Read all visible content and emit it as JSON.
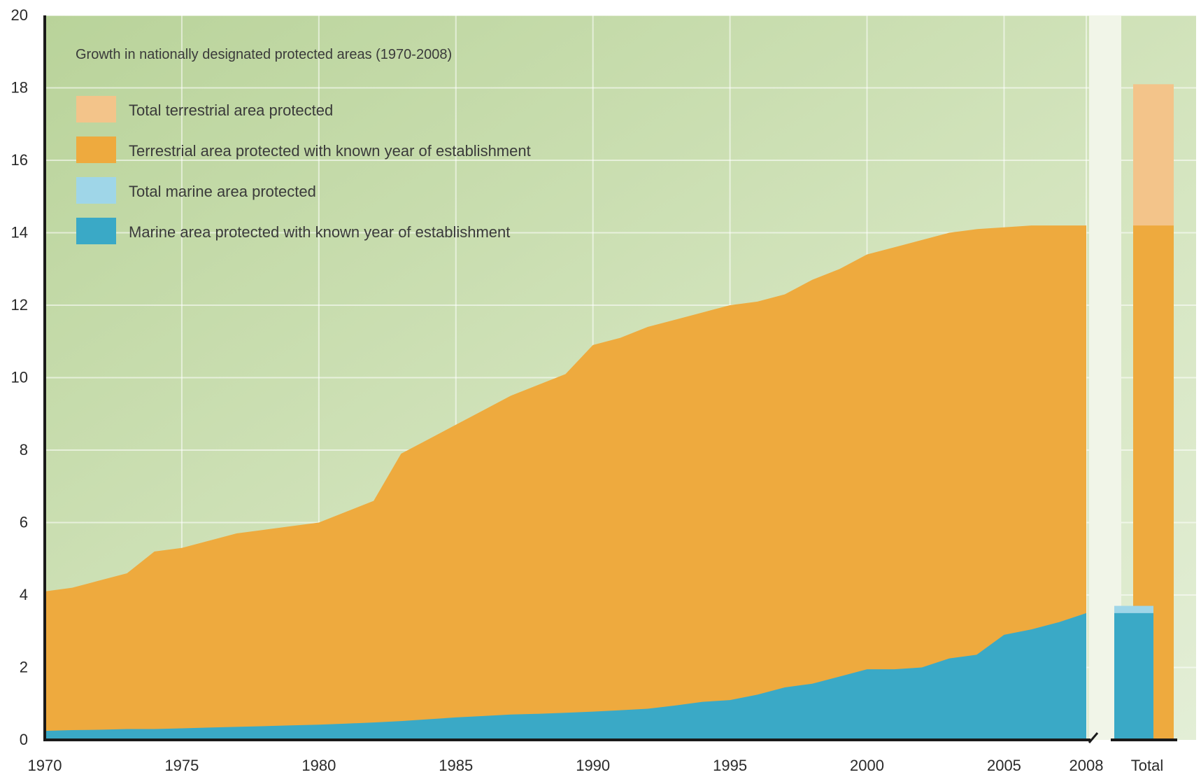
{
  "chart_data": {
    "type": "area",
    "title": "Growth in nationally designated protected areas (1970-2008)",
    "xlabel": "",
    "ylabel": "",
    "xlim": [
      1970,
      2008
    ],
    "ylim": [
      0,
      20
    ],
    "y_ticks": [
      0,
      2,
      4,
      6,
      8,
      10,
      12,
      14,
      16,
      18,
      20
    ],
    "x_ticks": [
      1970,
      1975,
      1980,
      1985,
      1990,
      1995,
      2000,
      2005,
      2008
    ],
    "x_tick_labels": [
      "1970",
      "1975",
      "1980",
      "1985",
      "1990",
      "1995",
      "2000",
      "2005",
      "2008"
    ],
    "grid": true,
    "legend_position": "top-left",
    "series": [
      {
        "name": "Terrestrial area protected with known  year of establishment",
        "color": "#eeaa3e",
        "x": [
          1970,
          1971,
          1972,
          1973,
          1974,
          1975,
          1976,
          1977,
          1978,
          1979,
          1980,
          1981,
          1982,
          1983,
          1984,
          1985,
          1986,
          1987,
          1988,
          1989,
          1990,
          1991,
          1992,
          1993,
          1994,
          1995,
          1996,
          1997,
          1998,
          1999,
          2000,
          2001,
          2002,
          2003,
          2004,
          2005,
          2006,
          2007,
          2008
        ],
        "values": [
          4.1,
          4.2,
          4.4,
          4.6,
          5.2,
          5.3,
          5.5,
          5.7,
          5.8,
          5.9,
          6.0,
          6.3,
          6.6,
          7.9,
          8.3,
          8.7,
          9.1,
          9.5,
          9.8,
          10.1,
          10.9,
          11.1,
          11.4,
          11.6,
          11.8,
          12.0,
          12.1,
          12.3,
          12.7,
          13.0,
          13.4,
          13.6,
          13.8,
          14.0,
          14.1,
          14.15,
          14.2,
          14.2,
          14.2
        ]
      },
      {
        "name": "Marine area protected with known year of establishment",
        "color": "#3aa9c6",
        "x": [
          1970,
          1971,
          1972,
          1973,
          1974,
          1975,
          1976,
          1977,
          1978,
          1979,
          1980,
          1981,
          1982,
          1983,
          1984,
          1985,
          1986,
          1987,
          1988,
          1989,
          1990,
          1991,
          1992,
          1993,
          1994,
          1995,
          1996,
          1997,
          1998,
          1999,
          2000,
          2001,
          2002,
          2003,
          2004,
          2005,
          2006,
          2007,
          2008
        ],
        "values": [
          0.25,
          0.27,
          0.28,
          0.3,
          0.3,
          0.32,
          0.34,
          0.36,
          0.38,
          0.4,
          0.42,
          0.45,
          0.48,
          0.52,
          0.57,
          0.62,
          0.66,
          0.7,
          0.72,
          0.75,
          0.78,
          0.82,
          0.86,
          0.95,
          1.05,
          1.1,
          1.25,
          1.45,
          1.55,
          1.75,
          1.95,
          1.95,
          2.0,
          2.25,
          2.35,
          2.9,
          3.05,
          3.25,
          3.5
        ]
      }
    ],
    "total": {
      "label": "Total",
      "series": [
        {
          "name": "Terrestrial area protected with known  year of establishment",
          "color": "#eeaa3e",
          "value": 14.2
        },
        {
          "name": "Total terrestrial area protected",
          "color": "#f3c48a",
          "value": 18.1
        },
        {
          "name": "Marine area protected with known year of establishment",
          "color": "#3aa9c6",
          "value": 3.5
        },
        {
          "name": "Total marine area protected",
          "color": "#9fd6e8",
          "value": 3.7
        }
      ]
    },
    "legend": [
      {
        "name": "Total terrestrial area protected",
        "color": "#f3c48a"
      },
      {
        "name": "Terrestrial area protected with known  year of establishment",
        "color": "#eeaa3e"
      },
      {
        "name": "Total marine area protected",
        "color": "#9fd6e8"
      },
      {
        "name": "Marine area protected with known year of establishment",
        "color": "#3aa9c6"
      }
    ]
  }
}
